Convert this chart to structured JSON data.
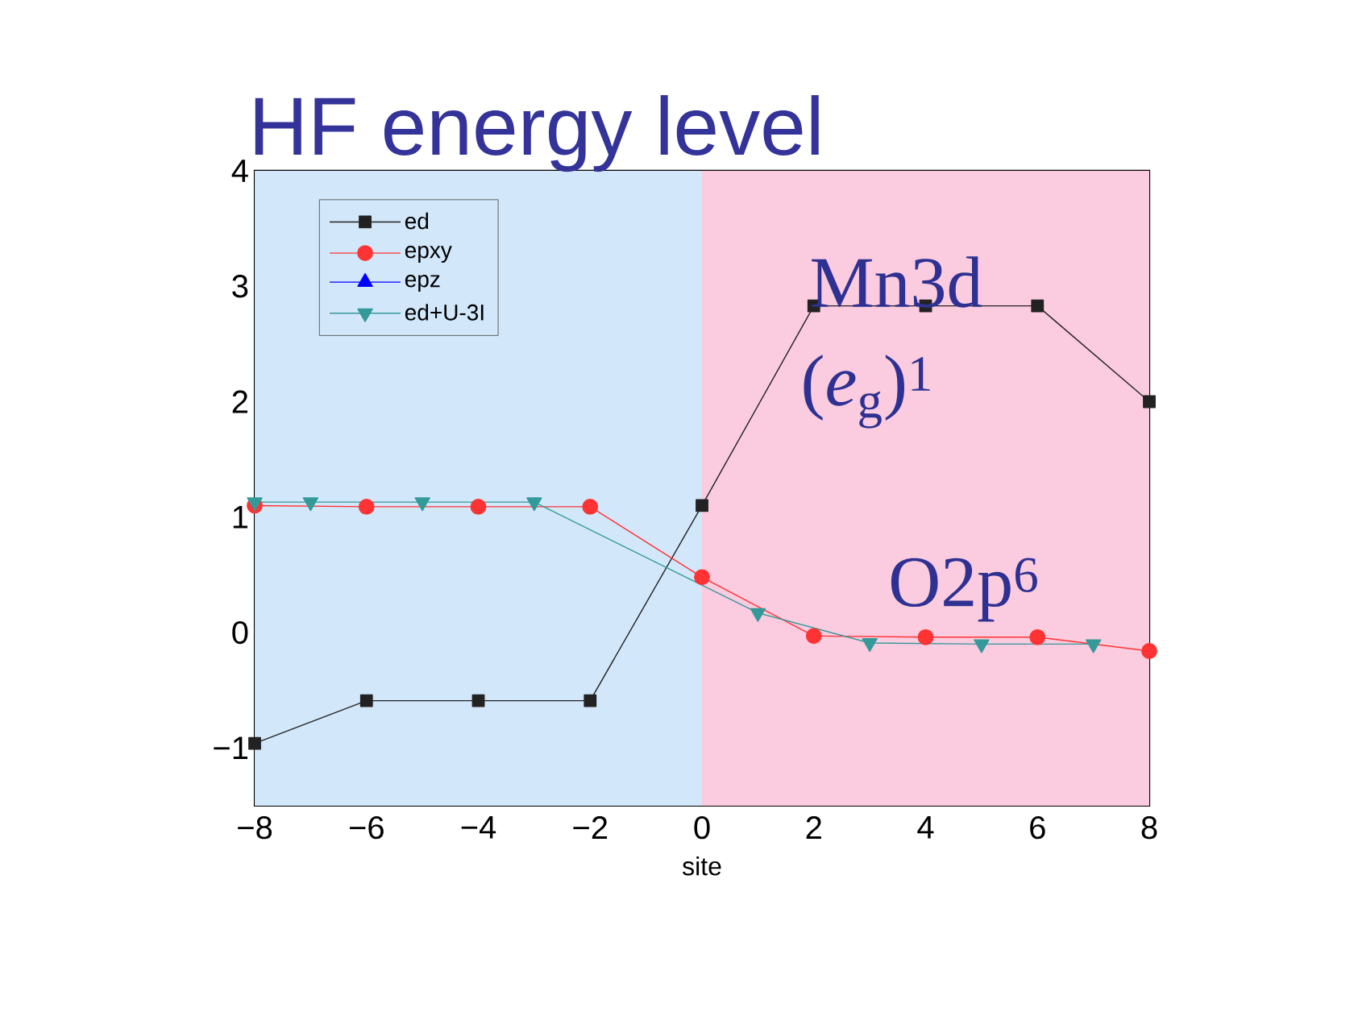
{
  "chart_data": {
    "type": "line",
    "title": "HF energy level",
    "xlabel": "site",
    "xlim": [
      -8,
      8
    ],
    "xticks": [
      {
        "value": -8,
        "label": "−8"
      },
      {
        "value": -6,
        "label": "−6"
      },
      {
        "value": -4,
        "label": "−4"
      },
      {
        "value": -2,
        "label": "−2"
      },
      0,
      2,
      4,
      6,
      8
    ],
    "ylim": [
      -1.5,
      4
    ],
    "yticks": [
      {
        "value": -1,
        "label": "−1"
      },
      0,
      1,
      2,
      3,
      4
    ],
    "legend": "top left",
    "series": [
      {
        "name": "ed",
        "color": "#222222",
        "marker": "square",
        "x": [
          -8,
          -6,
          -4,
          -2,
          0,
          2,
          4,
          6,
          8
        ],
        "values": [
          -0.96,
          -0.59,
          -0.59,
          -0.59,
          1.1,
          2.83,
          2.83,
          2.83,
          2.0
        ]
      },
      {
        "name": "epxy",
        "color": "#ff3333",
        "marker": "circle",
        "x": [
          -8,
          -6,
          -4,
          -2,
          0,
          2,
          4,
          6,
          8
        ],
        "values": [
          1.1,
          1.09,
          1.09,
          1.09,
          0.48,
          -0.03,
          -0.04,
          -0.04,
          -0.16
        ]
      },
      {
        "name": "epz",
        "color": "#0000ff",
        "marker": "triangle",
        "values": [
          null,
          null,
          null,
          null,
          null,
          null,
          null,
          null,
          null
        ]
      },
      {
        "name": "ed+U-3I",
        "color": "#339999",
        "marker": "triangle-down",
        "x": [
          -8,
          -7,
          -5,
          -3,
          1,
          3,
          5,
          7
        ],
        "values": [
          1.13,
          1.13,
          1.13,
          1.13,
          0.17,
          -0.09,
          -0.1,
          -0.1
        ]
      }
    ],
    "bands": [
      {
        "axis": "x",
        "from": -8,
        "to": 0,
        "color": "#d2e7fa"
      },
      {
        "axis": "x",
        "from": 0,
        "to": 8,
        "color": "#fbcbdf"
      }
    ],
    "annotations": [
      "Mn3d",
      "(*e*$_{g}$)$^{1}$",
      "O2p$^{6}$"
    ]
  }
}
